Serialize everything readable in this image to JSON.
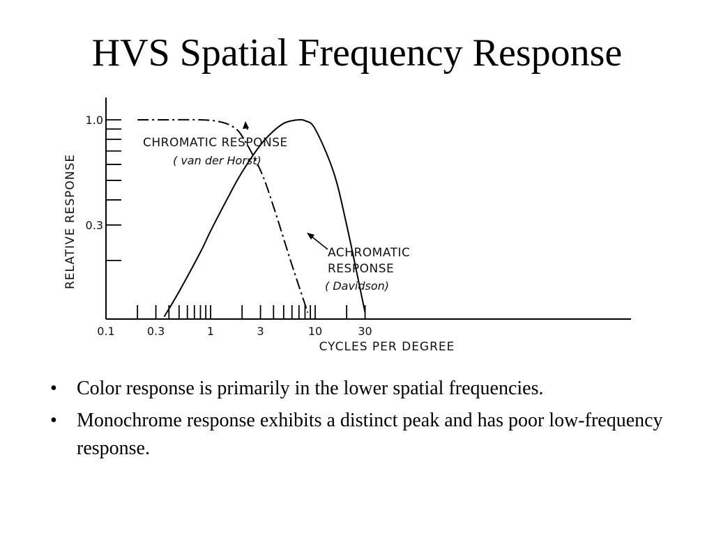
{
  "slide": {
    "title": "HVS Spatial Frequency Response",
    "bullets": [
      "Color response is primarily in the lower spatial frequencies.",
      "Monochrome response exhibits a distinct peak and has poor low-frequency response."
    ],
    "bullet_symbol": "•"
  },
  "chart_data": {
    "type": "line",
    "title": "",
    "xlabel": "CYCLES PER DEGREE",
    "ylabel": "RELATIVE RESPONSE",
    "xscale": "log",
    "yscale": "log",
    "xlim": [
      0.1,
      40
    ],
    "ylim": [
      0.1,
      1.0
    ],
    "xticklabels": [
      "0.1",
      "0.3",
      "1",
      "3",
      "10",
      "30"
    ],
    "xtickvalues": [
      0.1,
      0.3,
      1,
      3,
      10,
      30
    ],
    "yticklabels": [
      "1.0",
      "0.3"
    ],
    "ytickvalues": [
      1.0,
      0.3
    ],
    "grid": false,
    "series": [
      {
        "name": "CHROMATIC RESPONSE",
        "source": "( van der Horst)",
        "style": "dash-dot",
        "x": [
          0.2,
          0.4,
          0.8,
          1.2,
          1.6,
          2.0,
          3.0,
          4.0,
          6.0,
          8.5
        ],
        "y": [
          1.0,
          1.0,
          1.0,
          0.98,
          0.93,
          0.83,
          0.56,
          0.37,
          0.19,
          0.11
        ]
      },
      {
        "name": "ACHROMATIC RESPONSE",
        "source": "( Davidson)",
        "style": "solid",
        "x": [
          0.36,
          0.5,
          0.8,
          1.0,
          1.5,
          2.0,
          3.0,
          4.0,
          5.0,
          6.0,
          7.0,
          8.0,
          10.0,
          15.0,
          20.0,
          30.0
        ],
        "y": [
          0.105,
          0.14,
          0.22,
          0.28,
          0.42,
          0.55,
          0.75,
          0.88,
          0.96,
          0.99,
          1.0,
          0.99,
          0.9,
          0.55,
          0.3,
          0.11
        ]
      }
    ]
  }
}
